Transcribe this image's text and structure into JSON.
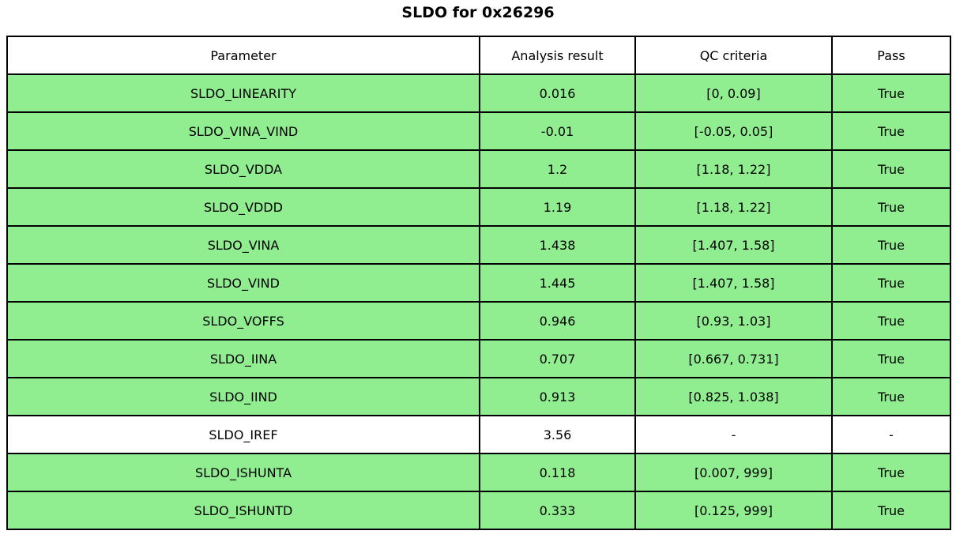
{
  "chart_data": {
    "type": "table",
    "title": "SLDO for 0x26296",
    "columns": [
      "Parameter",
      "Analysis result",
      "QC criteria",
      "Pass"
    ],
    "rows": [
      {
        "cells": [
          "SLDO_LINEARITY",
          "0.016",
          "[0, 0.09]",
          "True"
        ],
        "highlight": true
      },
      {
        "cells": [
          "SLDO_VINA_VIND",
          "-0.01",
          "[-0.05, 0.05]",
          "True"
        ],
        "highlight": true
      },
      {
        "cells": [
          "SLDO_VDDA",
          "1.2",
          "[1.18, 1.22]",
          "True"
        ],
        "highlight": true
      },
      {
        "cells": [
          "SLDO_VDDD",
          "1.19",
          "[1.18, 1.22]",
          "True"
        ],
        "highlight": true
      },
      {
        "cells": [
          "SLDO_VINA",
          "1.438",
          "[1.407, 1.58]",
          "True"
        ],
        "highlight": true
      },
      {
        "cells": [
          "SLDO_VIND",
          "1.445",
          "[1.407, 1.58]",
          "True"
        ],
        "highlight": true
      },
      {
        "cells": [
          "SLDO_VOFFS",
          "0.946",
          "[0.93, 1.03]",
          "True"
        ],
        "highlight": true
      },
      {
        "cells": [
          "SLDO_IINA",
          "0.707",
          "[0.667, 0.731]",
          "True"
        ],
        "highlight": true
      },
      {
        "cells": [
          "SLDO_IIND",
          "0.913",
          "[0.825, 1.038]",
          "True"
        ],
        "highlight": true
      },
      {
        "cells": [
          "SLDO_IREF",
          "3.56",
          "-",
          "-"
        ],
        "highlight": false
      },
      {
        "cells": [
          "SLDO_ISHUNTA",
          "0.118",
          "[0.007, 999]",
          "True"
        ],
        "highlight": true
      },
      {
        "cells": [
          "SLDO_ISHUNTD",
          "0.333",
          "[0.125, 999]",
          "True"
        ],
        "highlight": true
      }
    ],
    "colors": {
      "pass_row": "#90EE90",
      "neutral_row": "#ffffff",
      "header_background": "#ffffff",
      "border": "#000000",
      "text": "#000000"
    },
    "layout": {
      "cell_alignment": "center",
      "grid": true,
      "header_row": true
    }
  }
}
